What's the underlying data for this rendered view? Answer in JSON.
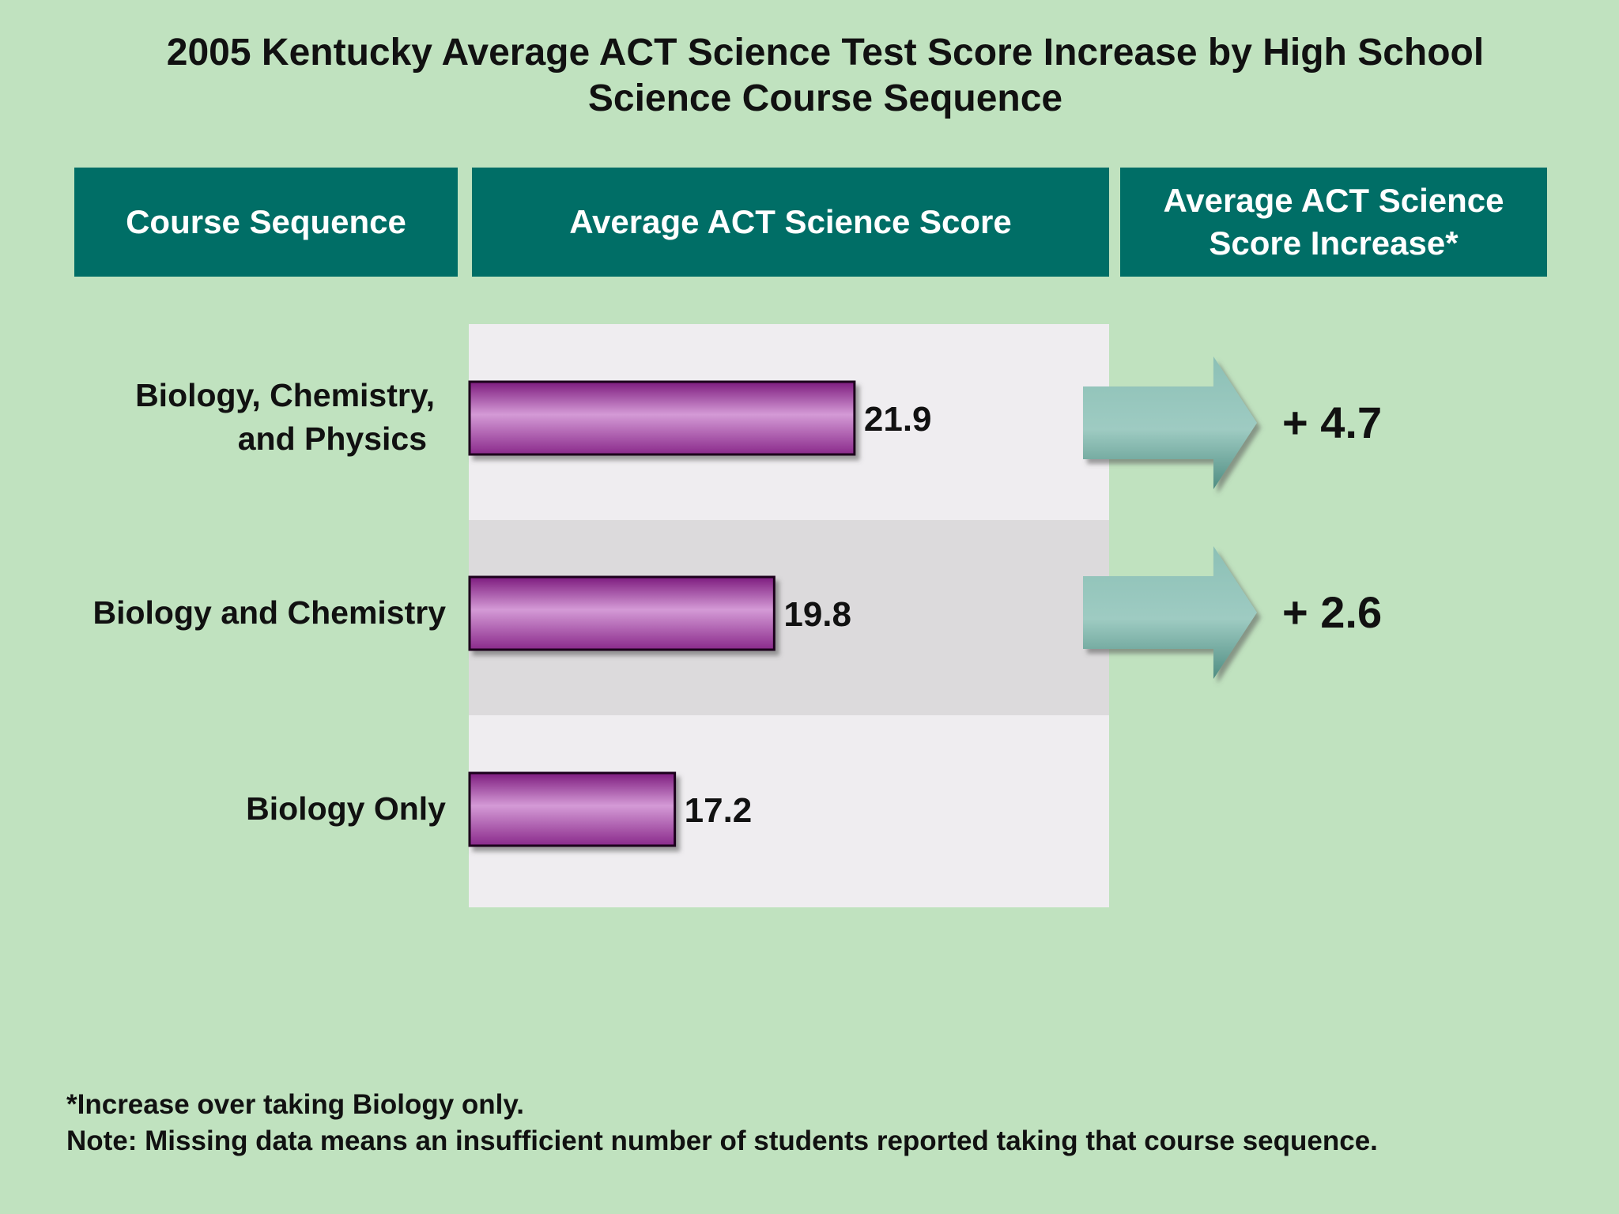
{
  "title": {
    "line1": "2005 Kentucky Average ACT Science Test Score Increase by High School",
    "line2": "Science Course Sequence"
  },
  "headers": {
    "col1": "Course Sequence",
    "col2": "Average ACT Science Score",
    "col3_line1": "Average ACT Science",
    "col3_line2": "Score Increase*"
  },
  "rows": [
    {
      "label_line1": "Biology, Chemistry,",
      "label_line2": "and Physics",
      "score_label": "21.9",
      "increase_label": "+ 4.7"
    },
    {
      "label_line1": "Biology and Chemistry",
      "label_line2": "",
      "score_label": "19.8",
      "increase_label": "+ 2.6"
    },
    {
      "label_line1": "Biology Only",
      "label_line2": "",
      "score_label": "17.2",
      "increase_label": ""
    }
  ],
  "footnotes": {
    "line1": "*Increase over taking Biology only.",
    "line2": "Note: Missing data means an insufficient number of students reported taking that course sequence."
  },
  "chart_data": {
    "type": "bar",
    "orientation": "horizontal",
    "categories": [
      "Biology, Chemistry, and Physics",
      "Biology and Chemistry",
      "Biology Only"
    ],
    "values": [
      21.9,
      19.8,
      17.2
    ],
    "increase_values": [
      4.7,
      2.6,
      null
    ],
    "ylabel": "Average ACT Science Score",
    "colors": {
      "bar": "#b050b0",
      "bar_light": "#d49ad6",
      "bar_dark": "#7d1b7e",
      "arrow": "#8cc0b6",
      "arrow_dark": "#4f8d82",
      "panel_light": "#efedf0",
      "panel_mid": "#dcdadc",
      "header_bg": "#006e66"
    }
  }
}
